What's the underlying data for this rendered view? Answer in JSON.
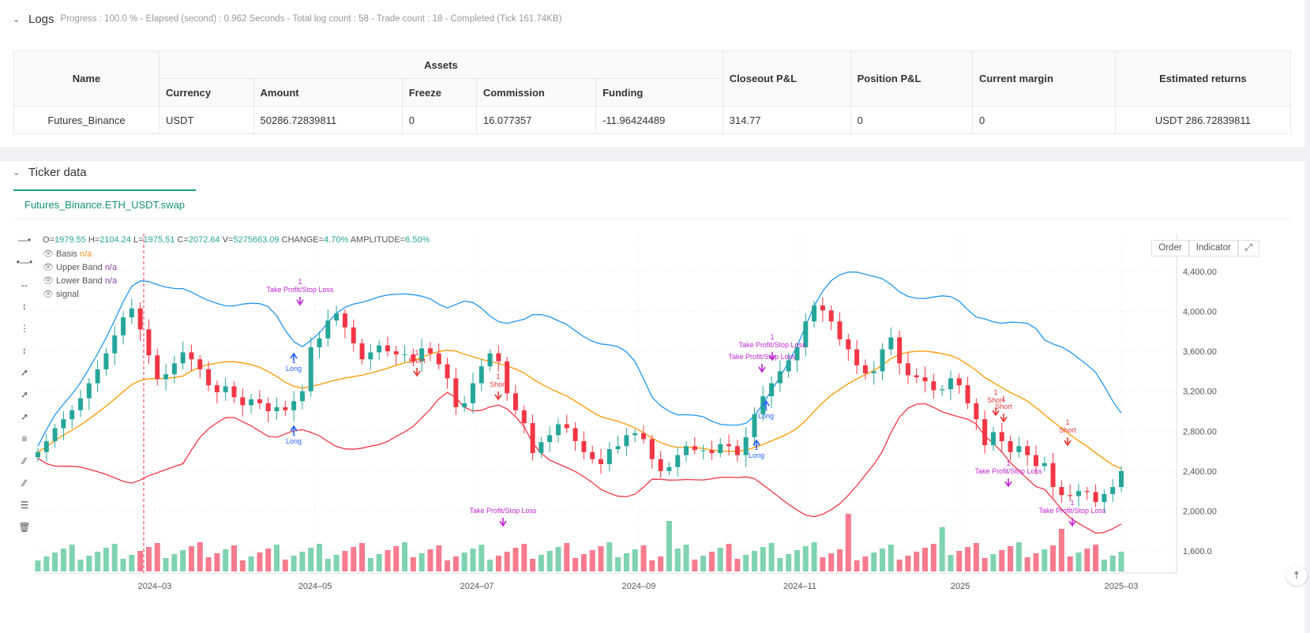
{
  "logs": {
    "title": "Logs",
    "subtitle": "Progress : 100.0 % - Elapsed (second) : 0.962  Seconds - Total log count : 58 - Trade count : 18 - Completed (Tick 161.74KB)"
  },
  "assets_table": {
    "headers": {
      "name": "Name",
      "assets": "Assets",
      "currency": "Currency",
      "amount": "Amount",
      "freeze": "Freeze",
      "commission": "Commission",
      "funding": "Funding",
      "closeout": "Closeout P&L",
      "position": "Position P&L",
      "margin": "Current margin",
      "returns": "Estimated returns"
    },
    "row": {
      "name": "Futures_Binance",
      "currency": "USDT",
      "amount": "50286.72839811",
      "freeze": "0",
      "commission": "16.077357",
      "funding": "-11.96424489",
      "closeout": "314.77",
      "position": "0",
      "margin": "0",
      "returns": "USDT 286.72839811"
    }
  },
  "ticker": {
    "title": "Ticker data",
    "tab": "Futures_Binance.ETH_USDT.swap",
    "order_btn": "Order",
    "indicator_btn": "Indicator"
  },
  "ohlc": {
    "o_label": "O=",
    "o": "1979.55",
    "h_label": "H=",
    "h": "2104.24",
    "l_label": "L=",
    "l": "1975.51",
    "c_label": "C=",
    "c": "2072.64",
    "v_label": "V=",
    "v": "5275663.09",
    "change_label": "CHANGE=",
    "change": "4.70%",
    "amp_label": "AMPLITUDE=",
    "amp": "6.50%"
  },
  "legend": [
    {
      "name": "Basis",
      "value": "n/a",
      "color": "#f7931a"
    },
    {
      "name": "Upper Band",
      "value": "n/a",
      "color": "#8e44ad"
    },
    {
      "name": "Lower Band",
      "value": "n/a",
      "color": "#8e44ad"
    },
    {
      "name": "signal",
      "value": "",
      "color": "#8e44ad"
    }
  ],
  "colors": {
    "up": "#26a69a",
    "down": "#f23645",
    "basis": "#ff9800",
    "upper": "#2196f3",
    "lower": "#f23645",
    "vol_up": "#7fd3b0",
    "vol_down": "#f77b8e",
    "long": "#2962ff",
    "short": "#e53935",
    "tp": "#c026d3"
  },
  "chart_data": {
    "type": "candlestick",
    "y_axis_ticks": [
      "4,400.00",
      "4,000.00",
      "3,600.00",
      "3,200.00",
      "2,800.00",
      "2,400.00",
      "2,000.00",
      "1,600.0"
    ],
    "ylim": [
      1600,
      4400
    ],
    "x_axis_ticks": [
      "2024–03",
      "2024–05",
      "2024–07",
      "2024–09",
      "2024–11",
      "2025",
      "2025–03"
    ],
    "close_series": [
      2590,
      2700,
      2830,
      2920,
      3010,
      3130,
      3280,
      3420,
      3580,
      3760,
      3940,
      4030,
      3820,
      3560,
      3320,
      3370,
      3480,
      3590,
      3520,
      3420,
      3260,
      3190,
      3250,
      3140,
      3060,
      3120,
      3080,
      3000,
      3040,
      3010,
      3100,
      3200,
      3640,
      3730,
      3910,
      3980,
      3840,
      3680,
      3520,
      3590,
      3660,
      3600,
      3570,
      3570,
      3500,
      3630,
      3580,
      3470,
      3330,
      3040,
      3080,
      3280,
      3450,
      3580,
      3500,
      3180,
      3010,
      2880,
      2580,
      2690,
      2760,
      2870,
      2830,
      2700,
      2590,
      2520,
      2470,
      2620,
      2650,
      2760,
      2780,
      2720,
      2520,
      2400,
      2440,
      2560,
      2650,
      2610,
      2610,
      2580,
      2670,
      2650,
      2560,
      2740,
      2970,
      3150,
      3280,
      3400,
      3510,
      3640,
      3900,
      4060,
      4010,
      3900,
      3720,
      3620,
      3460,
      3380,
      3400,
      3620,
      3740,
      3480,
      3360,
      3340,
      3300,
      3210,
      3220,
      3330,
      3260,
      3080,
      2920,
      2660,
      2790,
      2700,
      2590,
      2650,
      2560,
      2450,
      2480,
      2240,
      2160,
      2150,
      2200,
      2190,
      2090,
      2170,
      2240,
      2400
    ],
    "annotations": [
      {
        "kind": "tp",
        "text": "Take Profit/Stop Loss",
        "qty": "1"
      },
      {
        "kind": "long",
        "text": "Long",
        "qty": "1"
      },
      {
        "kind": "long",
        "text": "Long",
        "qty": "1"
      },
      {
        "kind": "short",
        "text": "Short",
        "qty": "1"
      },
      {
        "kind": "short",
        "text": "Short",
        "qty": "1"
      },
      {
        "kind": "tp",
        "text": "Take Profit/Stop Loss",
        "qty": ""
      },
      {
        "kind": "tp",
        "text": "Take Profit/Stop Loss",
        "qty": "1"
      },
      {
        "kind": "tp",
        "text": "Take Profit/Stop Loss",
        "qty": ""
      },
      {
        "kind": "long",
        "text": "Long",
        "qty": "1"
      },
      {
        "kind": "long",
        "text": "Long",
        "qty": "1"
      },
      {
        "kind": "short",
        "text": "Short",
        "qty": "1"
      },
      {
        "kind": "short",
        "text": "Short",
        "qty": "1"
      },
      {
        "kind": "short",
        "text": "Short",
        "qty": "1"
      },
      {
        "kind": "tp",
        "text": "Take Profit/Stop Loss",
        "qty": "1"
      },
      {
        "kind": "tp",
        "text": "Take Profit/Stop Loss",
        "qty": "1"
      }
    ]
  }
}
